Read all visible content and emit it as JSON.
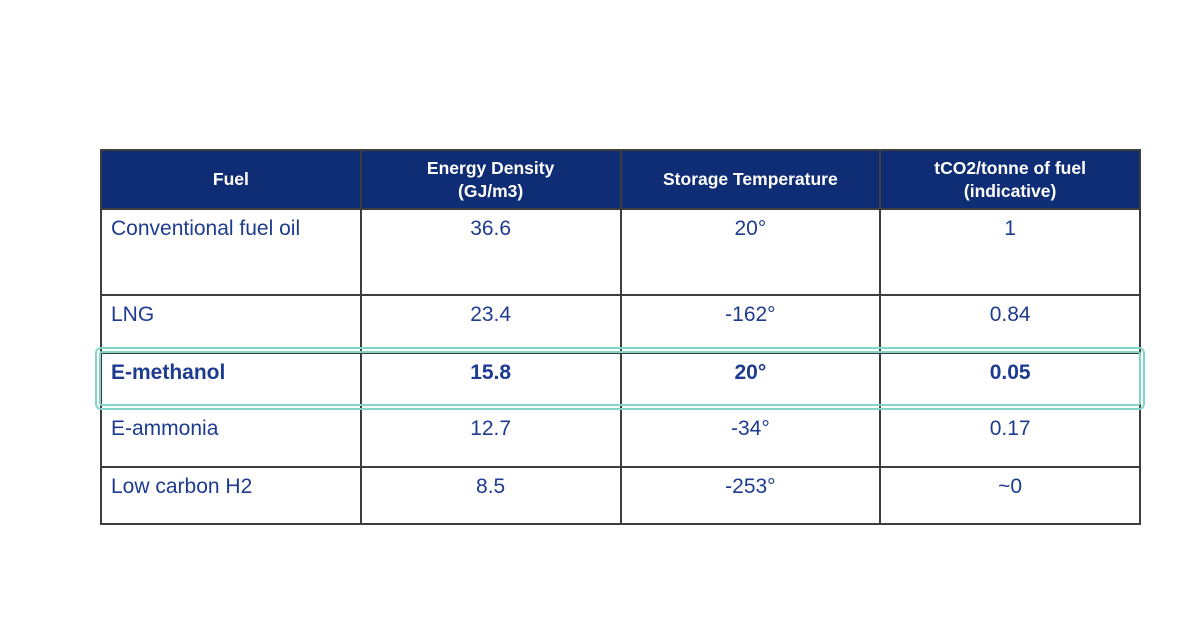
{
  "colors": {
    "header_background": "#0f2d75",
    "body_text": "#1e3c8f",
    "grid_border": "#3d3d3d",
    "highlight_border": "#82d5c9",
    "header_text": "#ffffff",
    "page_background": "#ffffff"
  },
  "table": {
    "columns": [
      {
        "label": "Fuel"
      },
      {
        "label": "Energy Density\n(GJ/m3)"
      },
      {
        "label": "Storage Temperature"
      },
      {
        "label": "tCO2/tonne of fuel\n(indicative)"
      }
    ],
    "rows": [
      {
        "fuel": "Conventional fuel oil",
        "energy_density": "36.6",
        "storage_temperature": "20°",
        "tco2": "1",
        "highlighted": false
      },
      {
        "fuel": "LNG",
        "energy_density": "23.4",
        "storage_temperature": "-162°",
        "tco2": "0.84",
        "highlighted": false
      },
      {
        "fuel": "E-methanol",
        "energy_density": "15.8",
        "storage_temperature": "20°",
        "tco2": "0.05",
        "highlighted": true
      },
      {
        "fuel": "E-ammonia",
        "energy_density": "12.7",
        "storage_temperature": "-34°",
        "tco2": "0.17",
        "highlighted": false
      },
      {
        "fuel": "Low carbon H2",
        "energy_density": "8.5",
        "storage_temperature": "-253°",
        "tco2": "~0",
        "highlighted": false
      }
    ]
  },
  "chart_data": {
    "type": "table",
    "title": "",
    "columns": [
      "Fuel",
      "Energy Density (GJ/m3)",
      "Storage Temperature",
      "tCO2/tonne of fuel (indicative)"
    ],
    "rows": [
      [
        "Conventional fuel oil",
        "36.6",
        "20°",
        "1"
      ],
      [
        "LNG",
        "23.4",
        "-162°",
        "0.84"
      ],
      [
        "E-methanol",
        "15.8",
        "20°",
        "0.05"
      ],
      [
        "E-ammonia",
        "12.7",
        "-34°",
        "0.17"
      ],
      [
        "Low carbon H2",
        "8.5",
        "-253°",
        "~0"
      ]
    ],
    "highlighted_row": "E-methanol",
    "layout_hints": {
      "header_style": "navy background, white bold text",
      "highlight_style": "double teal rounded outline around E-methanol row, bold navy text",
      "grid": "dark gray 2px borders, equal column widths"
    }
  }
}
